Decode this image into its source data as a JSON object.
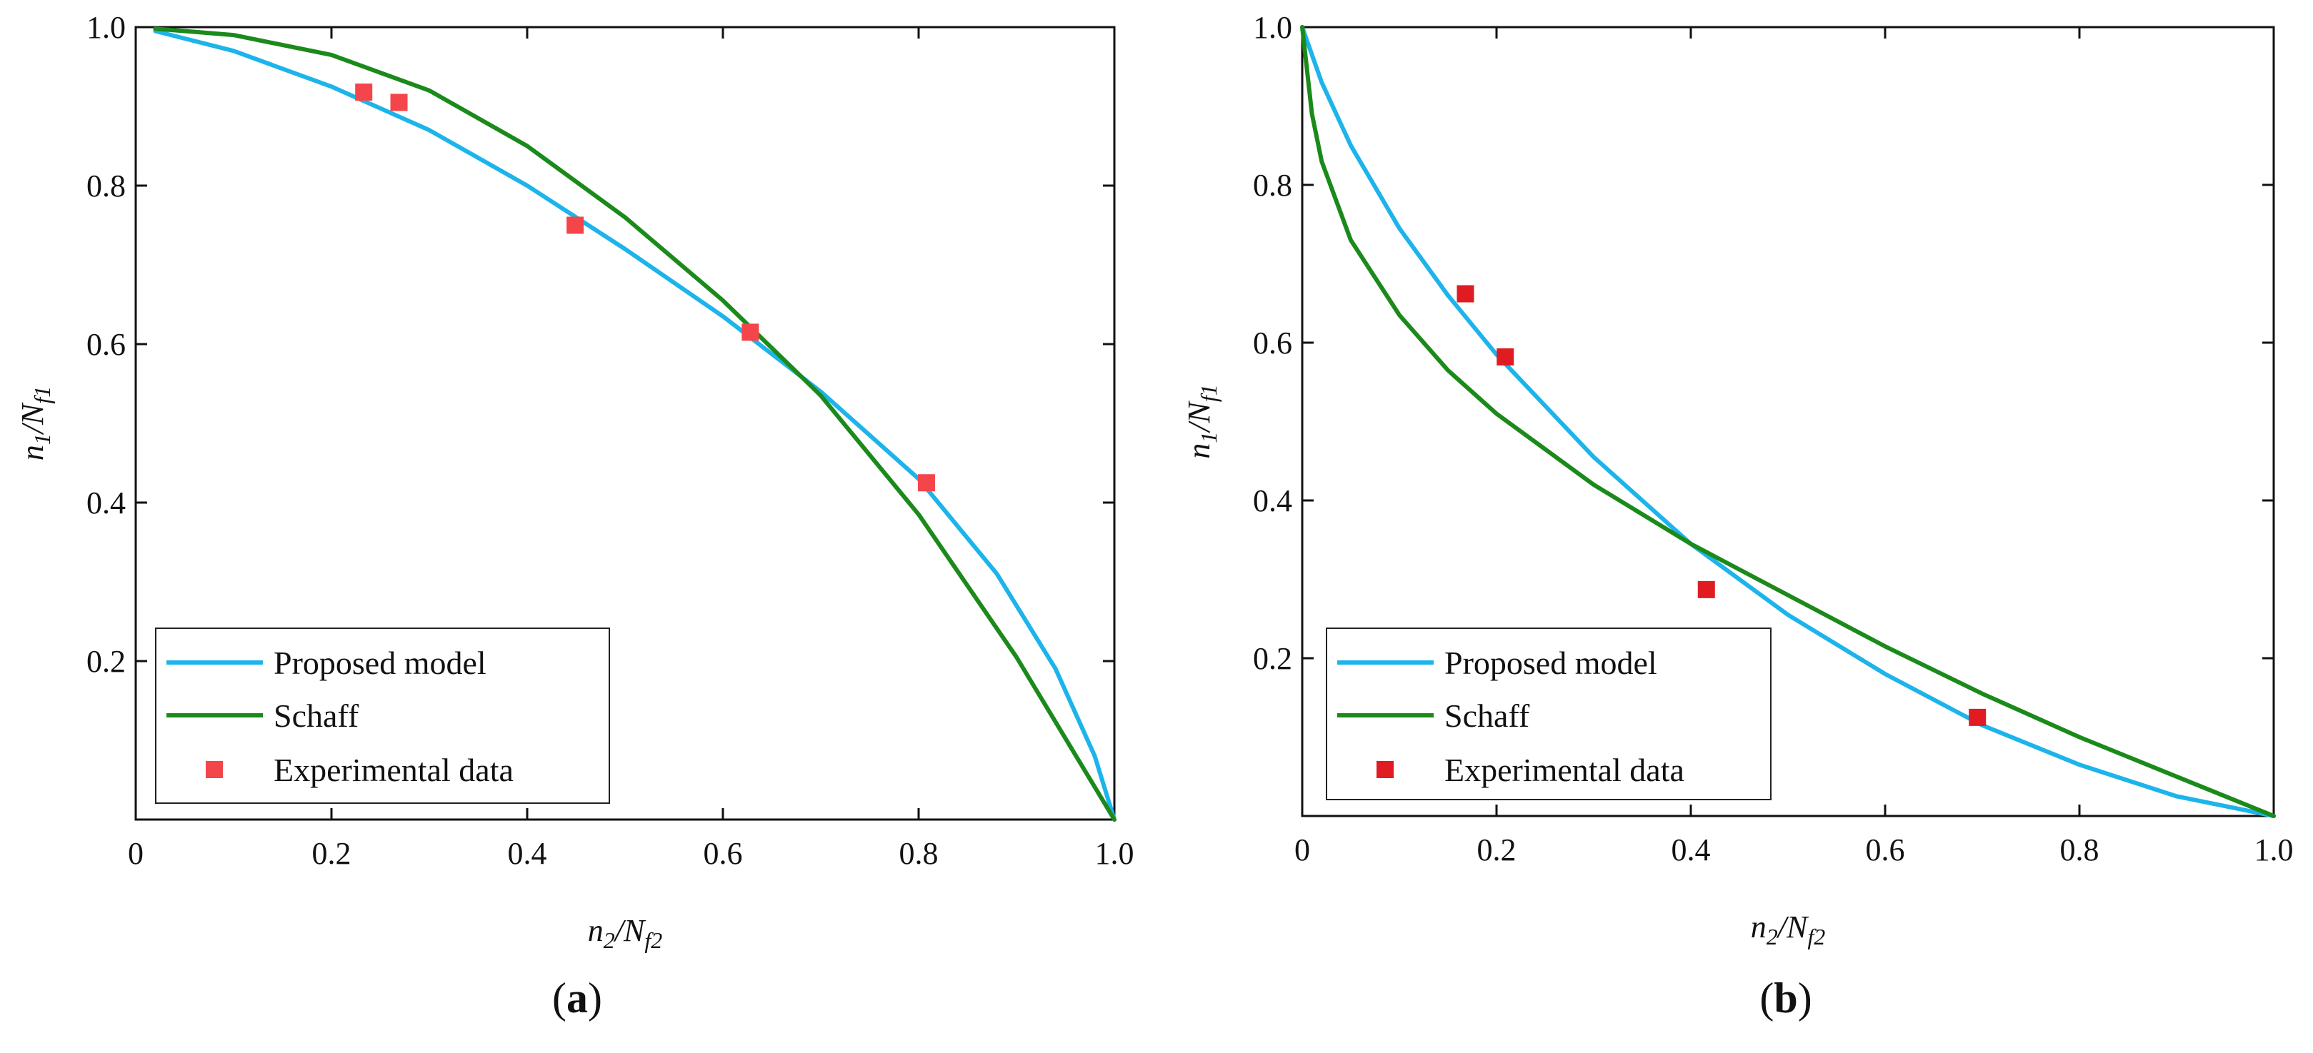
{
  "chart_data": [
    {
      "type": "line",
      "panel": "a",
      "caption": "a",
      "xlabel": {
        "base": "n",
        "sub1": "2",
        "mid": "/N",
        "sub2": "f2"
      },
      "ylabel": {
        "base": "n",
        "sub1": "1",
        "mid": "/N",
        "sub2": "f1"
      },
      "xlim": [
        0,
        1
      ],
      "ylim": [
        0,
        1
      ],
      "xticks": [
        0,
        0.2,
        0.4,
        0.6,
        0.8,
        1.0
      ],
      "xtick_labels": [
        "0",
        "0.2",
        "0.4",
        "0.6",
        "0.8",
        "1.0"
      ],
      "yticks": [
        0.2,
        0.4,
        0.6,
        0.8,
        1.0
      ],
      "ytick_labels": [
        "0.2",
        "0.4",
        "0.6",
        "0.8",
        "1.0"
      ],
      "legend_position": "bottom-left",
      "series": [
        {
          "name": "Proposed model",
          "kind": "line",
          "color": "#1cb4ea",
          "x": [
            0.02,
            0.1,
            0.2,
            0.3,
            0.4,
            0.5,
            0.6,
            0.7,
            0.8,
            0.88,
            0.94,
            0.98,
            1.0
          ],
          "y": [
            0.995,
            0.97,
            0.925,
            0.87,
            0.8,
            0.72,
            0.635,
            0.54,
            0.43,
            0.31,
            0.19,
            0.08,
            0.0
          ]
        },
        {
          "name": "Schaff",
          "kind": "line",
          "color": "#1b8a1b",
          "x": [
            0.02,
            0.1,
            0.2,
            0.3,
            0.4,
            0.5,
            0.6,
            0.7,
            0.8,
            0.9,
            1.0
          ],
          "y": [
            0.998,
            0.99,
            0.965,
            0.92,
            0.85,
            0.76,
            0.655,
            0.535,
            0.385,
            0.205,
            0.0
          ]
        },
        {
          "name": "Experimental data",
          "kind": "scatter",
          "color": "#f4454a",
          "x": [
            0.233,
            0.269,
            0.449,
            0.628,
            0.808
          ],
          "y": [
            0.918,
            0.905,
            0.75,
            0.615,
            0.425
          ]
        }
      ]
    },
    {
      "type": "line",
      "panel": "b",
      "caption": "b",
      "xlabel": {
        "base": "n",
        "sub1": "2",
        "mid": "/N",
        "sub2": "f2"
      },
      "ylabel": {
        "base": "n",
        "sub1": "1",
        "mid": "/N",
        "sub2": "f1"
      },
      "xlim": [
        0,
        1
      ],
      "ylim": [
        0,
        1
      ],
      "xticks": [
        0,
        0.2,
        0.4,
        0.6,
        0.8,
        1.0
      ],
      "xtick_labels": [
        "0",
        "0.2",
        "0.4",
        "0.6",
        "0.8",
        "1.0"
      ],
      "yticks": [
        0.2,
        0.4,
        0.6,
        0.8,
        1.0
      ],
      "ytick_labels": [
        "0.2",
        "0.4",
        "0.6",
        "0.8",
        "1.0"
      ],
      "legend_position": "bottom-left",
      "series": [
        {
          "name": "Proposed model",
          "kind": "line",
          "color": "#1cb4ea",
          "x": [
            0.0,
            0.02,
            0.05,
            0.1,
            0.15,
            0.2,
            0.3,
            0.4,
            0.5,
            0.6,
            0.7,
            0.8,
            0.9,
            1.0
          ],
          "y": [
            1.0,
            0.93,
            0.85,
            0.745,
            0.66,
            0.585,
            0.455,
            0.345,
            0.255,
            0.18,
            0.115,
            0.065,
            0.025,
            0.0
          ]
        },
        {
          "name": "Schaff",
          "kind": "line",
          "color": "#1b8a1b",
          "x": [
            0.0,
            0.01,
            0.02,
            0.05,
            0.1,
            0.15,
            0.2,
            0.3,
            0.4,
            0.5,
            0.6,
            0.7,
            0.8,
            0.9,
            1.0
          ],
          "y": [
            1.0,
            0.89,
            0.83,
            0.73,
            0.635,
            0.565,
            0.51,
            0.42,
            0.345,
            0.28,
            0.215,
            0.155,
            0.1,
            0.05,
            0.0
          ]
        },
        {
          "name": "Experimental data",
          "kind": "scatter",
          "color": "#e01b22",
          "x": [
            0.168,
            0.209,
            0.416,
            0.695
          ],
          "y": [
            0.662,
            0.582,
            0.287,
            0.125
          ]
        }
      ]
    }
  ]
}
